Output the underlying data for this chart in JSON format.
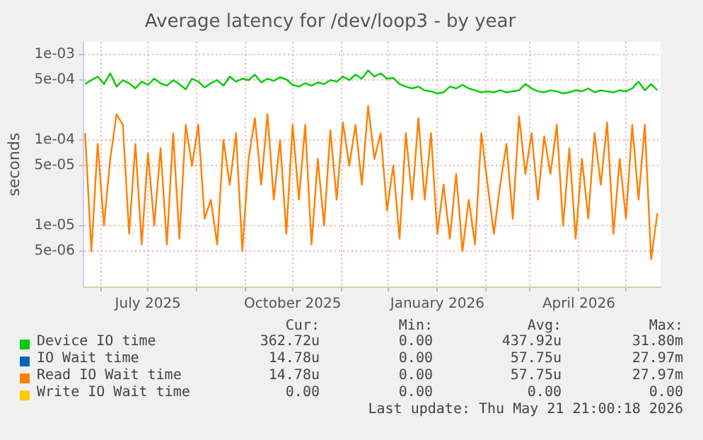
{
  "chart_data": {
    "type": "line",
    "title": "Average latency for /dev/loop3 - by year",
    "ylabel": "seconds",
    "x": [
      "2025-05-22",
      "2025-05-26",
      "2025-05-30",
      "2025-06-03",
      "2025-06-07",
      "2025-06-11",
      "2025-06-15",
      "2025-06-19",
      "2025-06-23",
      "2025-06-27",
      "2025-07-01",
      "2025-07-05",
      "2025-07-09",
      "2025-07-13",
      "2025-07-17",
      "2025-07-21",
      "2025-07-25",
      "2025-07-29",
      "2025-08-02",
      "2025-08-06",
      "2025-08-10",
      "2025-08-14",
      "2025-08-18",
      "2025-08-22",
      "2025-08-26",
      "2025-08-30",
      "2025-09-03",
      "2025-09-07",
      "2025-09-11",
      "2025-09-15",
      "2025-09-19",
      "2025-09-23",
      "2025-09-27",
      "2025-10-01",
      "2025-10-05",
      "2025-10-09",
      "2025-10-13",
      "2025-10-17",
      "2025-10-21",
      "2025-10-25",
      "2025-10-29",
      "2025-11-02",
      "2025-11-06",
      "2025-11-10",
      "2025-11-14",
      "2025-11-18",
      "2025-11-22",
      "2025-11-26",
      "2025-11-30",
      "2025-12-04",
      "2025-12-08",
      "2025-12-12",
      "2025-12-16",
      "2025-12-20",
      "2025-12-24",
      "2025-12-28",
      "2026-01-01",
      "2026-01-05",
      "2026-01-09",
      "2026-01-13",
      "2026-01-17",
      "2026-01-21",
      "2026-01-25",
      "2026-01-29",
      "2026-02-02",
      "2026-02-06",
      "2026-02-10",
      "2026-02-14",
      "2026-02-18",
      "2026-02-22",
      "2026-02-26",
      "2026-03-02",
      "2026-03-06",
      "2026-03-10",
      "2026-03-14",
      "2026-03-18",
      "2026-03-22",
      "2026-03-26",
      "2026-03-30",
      "2026-04-03",
      "2026-04-07",
      "2026-04-11",
      "2026-04-15",
      "2026-04-19",
      "2026-04-23",
      "2026-04-27",
      "2026-05-01",
      "2026-05-05",
      "2026-05-09",
      "2026-05-13",
      "2026-05-17",
      "2026-05-21"
    ],
    "series": [
      {
        "name": "Device IO time",
        "color": "#00cc00",
        "values": [
          0.00045,
          0.0005,
          0.00055,
          0.00045,
          0.0006,
          0.00042,
          0.0005,
          0.00046,
          0.0004,
          0.00048,
          0.00044,
          0.00052,
          0.00046,
          0.00043,
          0.0005,
          0.00045,
          0.00039,
          0.00052,
          0.00048,
          0.00041,
          0.00046,
          0.0005,
          0.00043,
          0.00055,
          0.00048,
          0.00052,
          0.0005,
          0.00058,
          0.00047,
          0.00052,
          0.00049,
          0.00054,
          0.00051,
          0.00044,
          0.00042,
          0.00046,
          0.00043,
          0.00047,
          0.00045,
          0.0005,
          0.00048,
          0.00055,
          0.0005,
          0.00058,
          0.00052,
          0.00065,
          0.00055,
          0.0006,
          0.00052,
          0.00053,
          0.00045,
          0.00042,
          0.0004,
          0.00042,
          0.00038,
          0.00037,
          0.00035,
          0.00036,
          0.00042,
          0.0004,
          0.00044,
          0.0004,
          0.00038,
          0.00036,
          0.00037,
          0.00036,
          0.00038,
          0.00036,
          0.00037,
          0.00038,
          0.00045,
          0.0004,
          0.00037,
          0.00036,
          0.00038,
          0.00037,
          0.00035,
          0.00036,
          0.00038,
          0.00037,
          0.0004,
          0.00036,
          0.00038,
          0.00037,
          0.00036,
          0.00038,
          0.00037,
          0.0004,
          0.00048,
          0.00038,
          0.00045,
          0.00038
        ]
      },
      {
        "name": "IO Wait time",
        "color": "#0066b3",
        "values": [
          null,
          null,
          null,
          null,
          null,
          null,
          null,
          null,
          null,
          null,
          null,
          null,
          null,
          null,
          null,
          null,
          null,
          null,
          null,
          null,
          null,
          null,
          null,
          null,
          null,
          null,
          null,
          null,
          null,
          null,
          null,
          null,
          null,
          null,
          null,
          null,
          null,
          null,
          null,
          null,
          null,
          null,
          null,
          null,
          null,
          null,
          null,
          null,
          null,
          null,
          null,
          null,
          null,
          null,
          null,
          null,
          null,
          null,
          null,
          null,
          null,
          null,
          null,
          null,
          null,
          null,
          null,
          null,
          null,
          null,
          null,
          null,
          null,
          null,
          null,
          null,
          null,
          null,
          null,
          null,
          null,
          null,
          null,
          null,
          null,
          null,
          null,
          null,
          null,
          null,
          null,
          null
        ]
      },
      {
        "name": "Read IO Wait time",
        "color": "#ff8000",
        "values": [
          0.00012,
          5e-06,
          9e-05,
          1e-05,
          6e-05,
          0.0002,
          0.00015,
          8e-06,
          9e-05,
          6e-06,
          7e-05,
          1e-05,
          8e-05,
          6e-06,
          0.00012,
          7e-06,
          0.00015,
          5e-05,
          0.00015,
          1.2e-05,
          2e-05,
          6e-06,
          0.0001,
          3e-05,
          0.00012,
          5e-06,
          6e-05,
          0.00018,
          3e-05,
          0.0002,
          2e-05,
          0.0001,
          8e-06,
          0.00015,
          2e-05,
          0.00015,
          6e-06,
          6e-05,
          1e-05,
          0.00013,
          2e-05,
          0.00016,
          5e-05,
          0.00015,
          3e-05,
          0.00025,
          6e-05,
          0.00012,
          1.5e-05,
          5e-05,
          7e-06,
          0.00012,
          2e-05,
          0.00018,
          2e-05,
          0.00012,
          8e-06,
          3e-05,
          7e-06,
          4e-05,
          5e-06,
          2e-05,
          6e-06,
          0.00012,
          3e-05,
          8e-06,
          3e-05,
          9e-05,
          1.2e-05,
          0.00019,
          4e-05,
          0.00012,
          2e-05,
          0.00011,
          4e-05,
          0.00015,
          1e-05,
          8e-05,
          7e-06,
          6e-05,
          1.2e-05,
          0.00012,
          3e-05,
          0.00016,
          8e-06,
          6e-05,
          1.2e-05,
          0.00015,
          2e-05,
          0.00015,
          4e-06,
          1.4e-05
        ]
      },
      {
        "name": "Write IO Wait time",
        "color": "#ffcc00",
        "values": [
          null,
          null,
          null,
          null,
          null,
          null,
          null,
          null,
          null,
          null,
          null,
          null,
          null,
          null,
          null,
          null,
          null,
          null,
          null,
          null,
          null,
          null,
          null,
          null,
          null,
          null,
          null,
          null,
          null,
          null,
          null,
          null,
          null,
          null,
          null,
          null,
          null,
          null,
          null,
          null,
          null,
          null,
          null,
          null,
          null,
          null,
          null,
          null,
          null,
          null,
          null,
          null,
          null,
          null,
          null,
          null,
          null,
          null,
          null,
          null,
          null,
          null,
          null,
          null,
          null,
          null,
          null,
          null,
          null,
          null,
          null,
          null,
          null,
          null,
          null,
          null,
          null,
          null,
          null,
          null,
          null,
          null,
          null,
          null,
          null,
          null,
          null,
          null,
          null,
          null,
          null,
          null
        ]
      }
    ],
    "log": "y",
    "xlim": [
      "2025-05-21",
      "2026-05-23"
    ],
    "ylim": [
      1.9e-06,
      0.0014
    ],
    "yticks": [
      {
        "value": 0.001,
        "label": "1e-03"
      },
      {
        "value": 0.0005,
        "label": "5e-04"
      },
      {
        "value": 0.0001,
        "label": "1e-04"
      },
      {
        "value": 5e-05,
        "label": "5e-05"
      },
      {
        "value": 1e-05,
        "label": "1e-05"
      },
      {
        "value": 5e-06,
        "label": "5e-06"
      }
    ],
    "xticks": [
      {
        "value": "2025-06-01",
        "label": null
      },
      {
        "value": "2025-07-01",
        "label": "July 2025"
      },
      {
        "value": "2025-08-01",
        "label": null
      },
      {
        "value": "2025-09-01",
        "label": null
      },
      {
        "value": "2025-10-01",
        "label": "October 2025"
      },
      {
        "value": "2025-11-01",
        "label": null
      },
      {
        "value": "2025-12-01",
        "label": null
      },
      {
        "value": "2026-01-01",
        "label": "January 2026"
      },
      {
        "value": "2026-02-01",
        "label": null
      },
      {
        "value": "2026-03-01",
        "label": null
      },
      {
        "value": "2026-04-01",
        "label": "April 2026"
      },
      {
        "value": "2026-05-01",
        "label": null
      }
    ],
    "grid": true,
    "legend": "bottom",
    "annotations": [
      "Cur:",
      "Min:",
      "Avg:",
      "Max:",
      "362.72u",
      "0.00",
      "437.92u",
      "31.80m",
      "14.78u",
      "0.00",
      "57.75u",
      "27.97m",
      "14.78u",
      "0.00",
      "57.75u",
      "27.97m",
      "0.00",
      "0.00",
      "0.00",
      "0.00",
      "Last update: Thu May 21 21:00:18 2026"
    ]
  }
}
